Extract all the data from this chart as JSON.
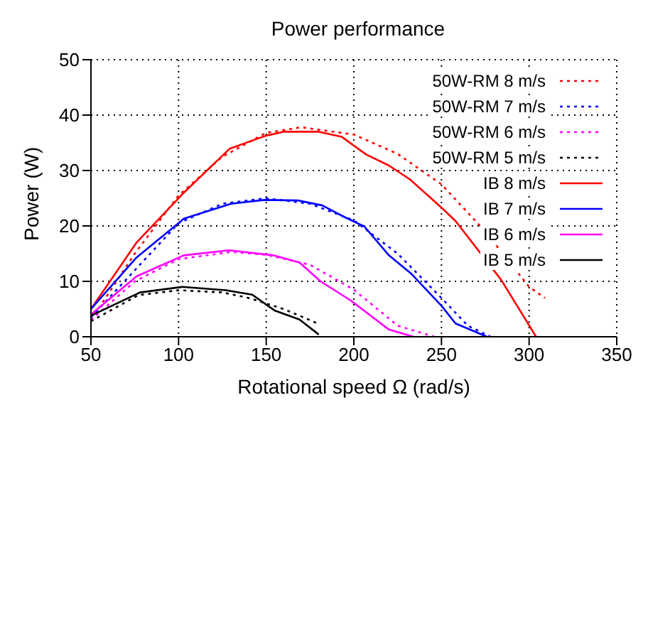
{
  "chart_data": {
    "type": "line",
    "title": "Power performance",
    "xlabel": "Rotational speed Ω (rad/s)",
    "ylabel": "Power (W)",
    "xlim": [
      50,
      350
    ],
    "xticks": [
      50,
      100,
      150,
      200,
      250,
      300,
      350
    ],
    "ylim": [
      0,
      50
    ],
    "yticks": [
      0,
      10,
      20,
      30,
      40,
      50
    ],
    "grid": true,
    "legend": "top right",
    "marker": "none",
    "series": [
      {
        "name": "50W-RM 8 m/s",
        "color": "#ff0000",
        "line_style": "dotted",
        "x": [
          50,
          75,
          100,
          125,
          150,
          170,
          200,
          225,
          250,
          275,
          300,
          309
        ],
        "values": [
          3,
          15,
          25.5,
          32.5,
          36.8,
          37.8,
          36.5,
          33,
          27.5,
          19,
          9,
          7
        ]
      },
      {
        "name": "50W-RM 7 m/s",
        "color": "#0000ff",
        "line_style": "dotted",
        "x": [
          50,
          75,
          100,
          125,
          150,
          175,
          200,
          225,
          250,
          265,
          278
        ],
        "values": [
          3.5,
          12,
          20.5,
          24,
          25,
          24,
          21,
          15,
          7,
          2,
          0
        ]
      },
      {
        "name": "50W-RM 6 m/s",
        "color": "#ff00ff",
        "line_style": "dotted",
        "x": [
          50,
          75,
          100,
          130,
          150,
          175,
          200,
          225,
          246
        ],
        "values": [
          3,
          10,
          14,
          15.3,
          14.8,
          13,
          8.5,
          2,
          0
        ]
      },
      {
        "name": "50W-RM 5 m/s",
        "color": "#000000",
        "line_style": "dotted",
        "x": [
          50,
          77,
          100,
          125,
          140,
          150,
          160,
          175,
          180
        ],
        "values": [
          2.8,
          7.5,
          8.4,
          8,
          7,
          6,
          5,
          3,
          2.3
        ]
      },
      {
        "name": "IB 8 m/s",
        "color": "#ff0000",
        "line_style": "solid",
        "x": [
          50,
          76,
          103,
          129,
          142,
          150,
          160,
          180,
          193,
          207,
          220,
          232,
          250,
          258,
          284,
          304
        ],
        "values": [
          5,
          17,
          26,
          33.9,
          35.4,
          36.3,
          37,
          37,
          36.1,
          32.9,
          30.9,
          28.4,
          23.3,
          20.9,
          10.3,
          0
        ]
      },
      {
        "name": "IB 7 m/s",
        "color": "#0000ff",
        "line_style": "solid",
        "x": [
          50,
          76,
          103,
          130,
          149,
          168,
          182,
          194,
          206,
          220,
          233,
          250,
          258,
          276
        ],
        "values": [
          5,
          14.3,
          21.3,
          24,
          24.7,
          24.6,
          23.7,
          21.7,
          19.9,
          14.7,
          11.3,
          5.6,
          2.4,
          0
        ]
      },
      {
        "name": "IB 6 m/s",
        "color": "#ff00ff",
        "line_style": "solid",
        "x": [
          50,
          76,
          103,
          129,
          154,
          169,
          181,
          198,
          220,
          234
        ],
        "values": [
          4,
          10.9,
          14.7,
          15.6,
          14.7,
          13.4,
          10,
          6.6,
          1.3,
          0
        ]
      },
      {
        "name": "IB 5 m/s",
        "color": "#000000",
        "line_style": "solid",
        "x": [
          50,
          78,
          102,
          127,
          142,
          155,
          169,
          180
        ],
        "values": [
          3.8,
          8,
          9,
          8.4,
          7.6,
          4.7,
          3.1,
          0.4
        ]
      }
    ]
  }
}
